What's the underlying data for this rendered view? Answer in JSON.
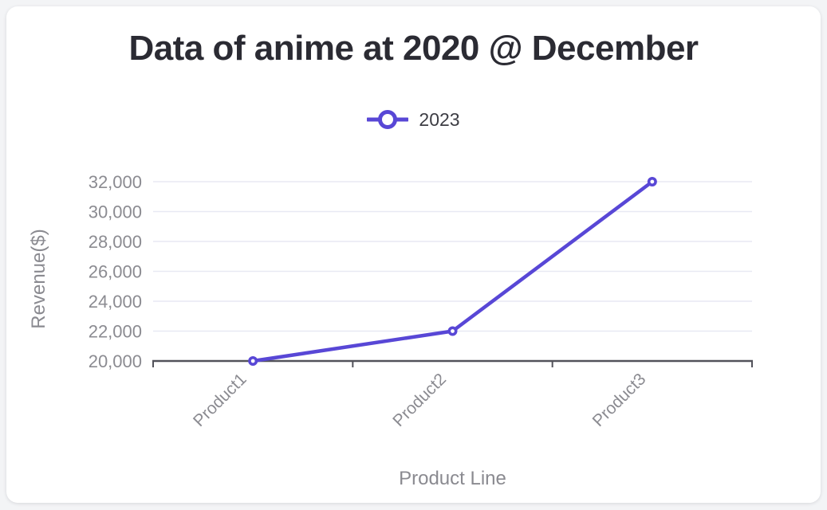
{
  "chart_data": {
    "type": "line",
    "title": "Data of anime at 2020 @ December",
    "categories": [
      "Product1",
      "Product2",
      "Product3"
    ],
    "series": [
      {
        "name": "2023",
        "values": [
          20000,
          22000,
          32000
        ]
      }
    ],
    "xlabel": "Product Line",
    "ylabel": "Revenue($)",
    "ylim": [
      20000,
      32000
    ],
    "ytick_step": 2000,
    "ytick_labels": [
      "20,000",
      "22,000",
      "24,000",
      "26,000",
      "28,000",
      "30,000",
      "32,000"
    ],
    "grid": true,
    "legend_position": "top-center",
    "marker": "open-circle",
    "colors": {
      "series": "#5847d6",
      "grid": "#e8e9f3",
      "axis": "#52525a",
      "tick_text": "#8b8b91",
      "axis_title_text": "#8a8a90",
      "title_text": "#2b2b33",
      "legend_text": "#3d3d44",
      "card_bg": "#ffffff",
      "page_bg": "#f3f4f6"
    }
  }
}
